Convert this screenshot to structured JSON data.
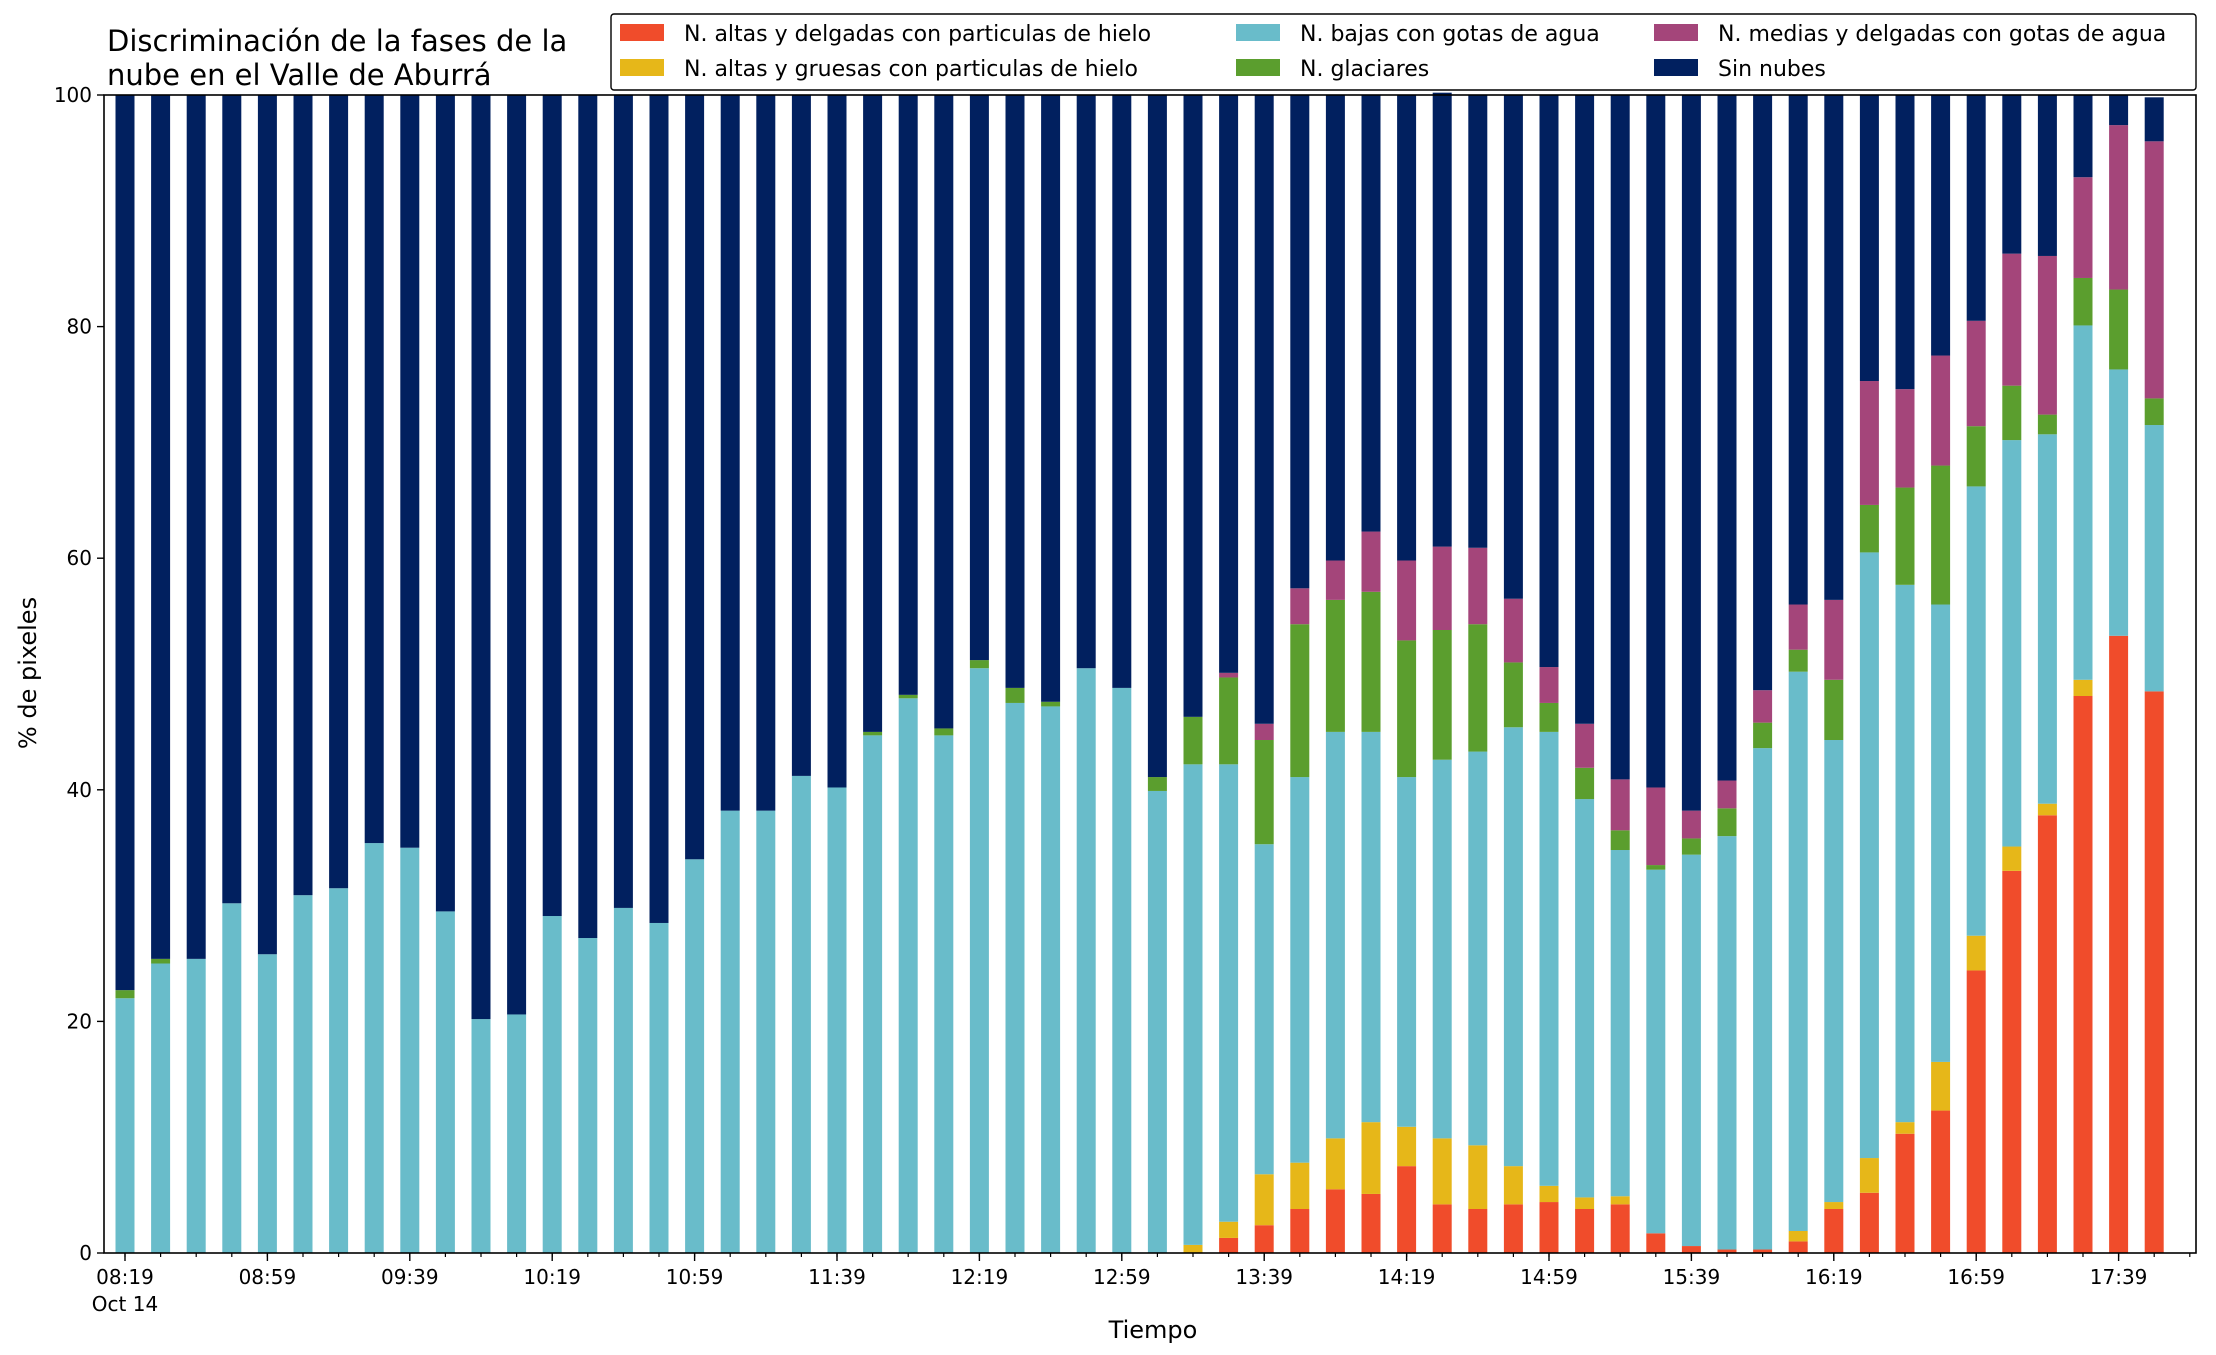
{
  "chart_data": {
    "type": "bar",
    "stacked": true,
    "title_lines": [
      "Discriminación de la fases de la",
      "nube en el Valle de Aburrá"
    ],
    "xlabel": "Tiempo",
    "ylabel": "% de pixeles",
    "ylim": [
      0,
      100
    ],
    "y_ticks": [
      "0",
      "20",
      "40",
      "60",
      "80",
      "100"
    ],
    "x_tick_labels": [
      "08:19",
      "08:59",
      "09:39",
      "10:19",
      "10:59",
      "11:39",
      "12:19",
      "12:59",
      "13:39",
      "14:19",
      "14:59",
      "15:39",
      "16:19",
      "16:59",
      "17:39"
    ],
    "x_date_label": "Oct 14",
    "legend_position": "top-right",
    "legend_columns": 3,
    "grid": false,
    "bar_interval_minutes": 10,
    "categories": [
      "08:19",
      "08:29",
      "08:39",
      "08:49",
      "08:59",
      "09:09",
      "09:19",
      "09:29",
      "09:39",
      "09:49",
      "09:59",
      "10:09",
      "10:19",
      "10:29",
      "10:39",
      "10:49",
      "10:59",
      "11:09",
      "11:19",
      "11:29",
      "11:39",
      "11:49",
      "11:59",
      "12:09",
      "12:19",
      "12:29",
      "12:39",
      "12:49",
      "12:59",
      "13:09",
      "13:19",
      "13:29",
      "13:39",
      "13:49",
      "13:59",
      "14:09",
      "14:19",
      "14:29",
      "14:39",
      "14:49",
      "14:59",
      "15:09",
      "15:19",
      "15:29",
      "15:39",
      "15:49",
      "15:59",
      "16:09",
      "16:19",
      "16:29",
      "16:39",
      "16:49",
      "16:59",
      "17:09",
      "17:19",
      "17:29",
      "17:39",
      "17:49"
    ],
    "series": [
      {
        "name": "N. altas y delgadas con particulas de hielo",
        "color": "#f04c2b",
        "values": [
          0,
          0,
          0,
          0,
          0,
          0,
          0,
          0,
          0,
          0,
          0,
          0,
          0,
          0,
          0,
          0,
          0,
          0,
          0,
          0,
          0,
          0,
          0,
          0,
          0,
          0,
          0,
          0,
          0,
          0,
          0,
          1.3,
          2.4,
          3.8,
          5.5,
          5.1,
          7.5,
          4.2,
          3.8,
          4.2,
          4.4,
          3.8,
          4.2,
          1.7,
          0.6,
          0.3,
          0.3,
          1.0,
          3.8,
          5.2,
          10.3,
          12.3,
          24.4,
          33.0,
          37.8,
          48.1,
          53.3,
          48.5
        ]
      },
      {
        "name": "N. altas y gruesas con particulas de hielo",
        "color": "#e6b719",
        "values": [
          0,
          0,
          0,
          0,
          0,
          0,
          0,
          0,
          0,
          0,
          0,
          0,
          0,
          0,
          0,
          0,
          0,
          0,
          0,
          0,
          0,
          0,
          0,
          0,
          0,
          0,
          0,
          0,
          0,
          0,
          0.7,
          1.4,
          4.4,
          4.0,
          4.4,
          6.2,
          3.4,
          5.7,
          5.5,
          3.3,
          1.4,
          1.0,
          0.7,
          0,
          0,
          0,
          0,
          0.9,
          0.6,
          3.0,
          1.0,
          4.2,
          3.0,
          2.1,
          1.0,
          1.4,
          0,
          0
        ]
      },
      {
        "name": "N. bajas con gotas de agua",
        "color": "#69bcca",
        "values": [
          22.0,
          25.0,
          25.4,
          30.2,
          25.8,
          30.9,
          31.5,
          35.4,
          35.0,
          29.5,
          20.2,
          20.6,
          29.1,
          27.2,
          29.8,
          28.5,
          34.0,
          38.2,
          38.2,
          41.2,
          40.2,
          44.7,
          47.9,
          44.7,
          50.5,
          47.5,
          47.2,
          50.5,
          48.8,
          39.9,
          41.5,
          39.5,
          28.5,
          33.3,
          35.1,
          33.7,
          30.2,
          32.7,
          34.0,
          37.9,
          39.2,
          34.4,
          29.9,
          31.4,
          33.8,
          35.7,
          43.3,
          48.3,
          39.9,
          52.3,
          46.4,
          39.5,
          38.8,
          35.1,
          31.9,
          30.6,
          23.0,
          23.0
        ]
      },
      {
        "name": "N. glaciares",
        "color": "#5b9e2e",
        "values": [
          0.7,
          0.4,
          0,
          0,
          0,
          0,
          0,
          0,
          0,
          0,
          0,
          0,
          0,
          0,
          0,
          0,
          0,
          0,
          0,
          0,
          0,
          0.3,
          0.3,
          0.6,
          0.7,
          1.3,
          0.4,
          0,
          0,
          1.2,
          4.1,
          7.5,
          9.0,
          13.2,
          11.4,
          12.1,
          11.8,
          11.2,
          11.0,
          5.6,
          2.5,
          2.7,
          1.7,
          0.4,
          1.4,
          2.4,
          2.2,
          1.9,
          5.2,
          4.1,
          8.4,
          12.0,
          5.2,
          4.7,
          1.7,
          4.1,
          6.9,
          2.3
        ]
      },
      {
        "name": "N. medias y delgadas con gotas de agua",
        "color": "#a4457a",
        "values": [
          0,
          0,
          0,
          0,
          0,
          0,
          0,
          0,
          0,
          0,
          0,
          0,
          0,
          0,
          0,
          0,
          0,
          0,
          0,
          0,
          0,
          0,
          0,
          0,
          0,
          0,
          0,
          0,
          0,
          0,
          0,
          0.4,
          1.4,
          3.1,
          3.4,
          5.2,
          6.9,
          7.2,
          6.6,
          5.5,
          3.1,
          3.8,
          4.4,
          6.7,
          2.4,
          2.4,
          2.8,
          3.9,
          6.9,
          10.7,
          8.5,
          9.5,
          9.1,
          11.4,
          13.7,
          8.7,
          14.2,
          22.2
        ]
      },
      {
        "name": "Sin nubes",
        "color": "#01205f",
        "values": [
          77.3,
          74.6,
          74.6,
          69.8,
          74.2,
          69.1,
          68.5,
          64.6,
          65.0,
          70.5,
          79.8,
          79.4,
          70.9,
          72.8,
          70.2,
          71.5,
          66.0,
          61.8,
          61.8,
          58.8,
          59.8,
          55.0,
          51.8,
          54.7,
          48.8,
          51.2,
          52.4,
          49.5,
          51.2,
          58.9,
          53.7,
          49.9,
          54.3,
          42.6,
          40.2,
          37.7,
          40.2,
          39.2,
          39.1,
          43.5,
          49.4,
          54.3,
          59.1,
          59.8,
          61.8,
          59.2,
          51.4,
          44.0,
          43.6,
          24.7,
          25.4,
          22.5,
          19.5,
          13.7,
          13.9,
          7.1,
          2.6,
          3.8
        ]
      }
    ]
  }
}
